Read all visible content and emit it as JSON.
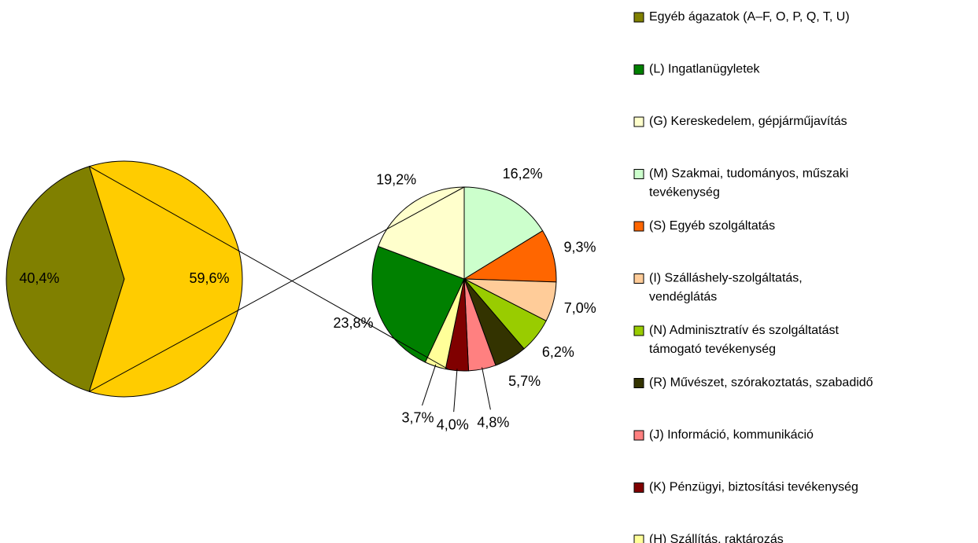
{
  "chart_data": [
    {
      "type": "pie",
      "categories": [
        "Egyéb ágazatok (A–F, O, P, Q, T, U)",
        null
      ],
      "values": [
        40.4,
        59.6
      ],
      "value_labels": [
        "40,4%",
        "59,6%"
      ],
      "colors": [
        "#808000",
        "#FFCC00"
      ]
    },
    {
      "type": "pie",
      "categories": [
        "(L) Ingatlanügyletek",
        "(G) Kereskedelem, gépjárműjavítás",
        "(M) Szakmai, tudományos, műszaki\ntevékenység",
        "(S) Egyéb szolgáltatás",
        "(I) Szálláshely-szolgáltatás,\nvendéglátás",
        "(N) Adminisztratív és szolgáltatást\ntámogató tevékenység",
        "(R) Művészet, szórakoztatás, szabadidő",
        "(J) Információ, kommunikáció",
        "(K) Pénzügyi, biztosítási tevékenység",
        "(H) Szállítás, raktározás"
      ],
      "values": [
        23.8,
        19.2,
        16.2,
        9.3,
        7.0,
        6.2,
        5.7,
        4.8,
        4.0,
        3.7
      ],
      "value_labels": [
        "23,8%",
        "19,2%",
        "16,2%",
        "9,3%",
        "7,0%",
        "6,2%",
        "5,7%",
        "4,8%",
        "4,0%",
        "3,7%"
      ],
      "colors": [
        "#008000",
        "#FFFFCC",
        "#CCFFCC",
        "#FF6600",
        "#FFCC99",
        "#99CC00",
        "#333300",
        "#FF8080",
        "#800000",
        "#FFFF99"
      ]
    }
  ]
}
